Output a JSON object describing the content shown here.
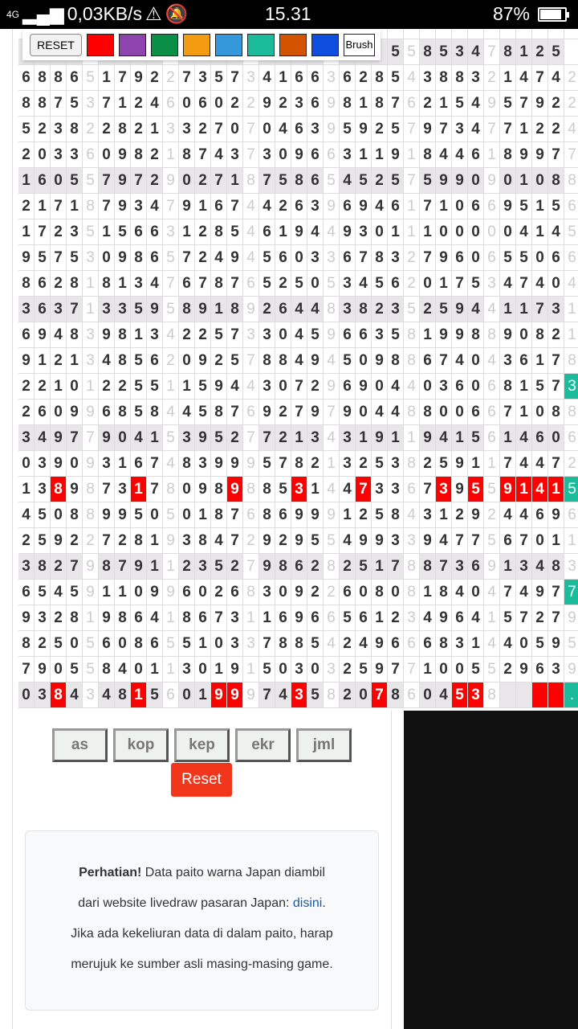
{
  "status": {
    "network": "4G",
    "speed": "0,03KB/s",
    "time": "15.31",
    "battery": "87%",
    "battery_level": 0.87
  },
  "toolbar": {
    "reset": "RESET",
    "brush": "Brush",
    "colors": [
      "#ff0000",
      "#8e44ad",
      "#0a8f47",
      "#f39c12",
      "#3498db",
      "#1abc9c",
      "#d35400",
      "#0e4fe0"
    ]
  },
  "grid": {
    "rows": [
      "                                   ",
      "                       55853478125 7",
      "68865179227357341663628543883214742",
      "88753712460602292369818762154957922",
      "52382282133270704639592579734771224",
      "20336098218743730966311918446189977",
      "16055797290271875865452575990901088",
      "21718793479167442639694617106695156",
      "17235156631285461944930111000004145",
      "95753098657249456033678327960655066",
      "86281813476787652505345620175347404",
      "36371335958918926448382352594411731",
      "69483981342257330459663581998890821",
      "91213485620925788494509886740436178",
      "22101225511594430729690440360681573",
      "26099685844587692797904488006671088",
      "34977904153952772134319119415614606",
      "03909316748399957821325382591174472",
      "13898731780989885314473367395591415",
      "45088995050187686999125843129244696",
      "25922728193847292955499339477567011",
      "38279879112352798628251788736913483",
      "65459110996026830922608081840474977",
      "93281986418673116966561234964157279",
      "82505608655103378854249666831440595",
      "79055840113019150303259771005529639",
      "038434815601999743582078604538    ."
    ],
    "highlight_rows": [
      1,
      6,
      11,
      16,
      21,
      26
    ],
    "marks": [
      {
        "row": 14,
        "col": 34,
        "color": "#1abc9c"
      },
      {
        "row": 18,
        "col": 2,
        "color": "#ff0000"
      },
      {
        "row": 18,
        "col": 7,
        "color": "#ff0000"
      },
      {
        "row": 18,
        "col": 13,
        "color": "#ff0000"
      },
      {
        "row": 18,
        "col": 17,
        "color": "#ff0000"
      },
      {
        "row": 18,
        "col": 21,
        "color": "#ff0000"
      },
      {
        "row": 18,
        "col": 26,
        "color": "#ff0000"
      },
      {
        "row": 18,
        "col": 28,
        "color": "#ff0000"
      },
      {
        "row": 18,
        "col": 30,
        "color": "#ff0000"
      },
      {
        "row": 18,
        "col": 31,
        "color": "#ff0000"
      },
      {
        "row": 18,
        "col": 32,
        "color": "#ff0000"
      },
      {
        "row": 18,
        "col": 33,
        "color": "#ff0000"
      },
      {
        "row": 18,
        "col": 34,
        "color": "#1abc9c"
      },
      {
        "row": 22,
        "col": 34,
        "color": "#1abc9c"
      },
      {
        "row": 26,
        "col": 2,
        "color": "#ff0000"
      },
      {
        "row": 26,
        "col": 7,
        "color": "#ff0000"
      },
      {
        "row": 26,
        "col": 12,
        "color": "#ff0000"
      },
      {
        "row": 26,
        "col": 13,
        "color": "#ff0000"
      },
      {
        "row": 26,
        "col": 17,
        "color": "#ff0000"
      },
      {
        "row": 26,
        "col": 22,
        "color": "#ff0000"
      },
      {
        "row": 26,
        "col": 27,
        "color": "#ff0000"
      },
      {
        "row": 26,
        "col": 28,
        "color": "#ff0000"
      },
      {
        "row": 26,
        "col": 32,
        "color": "#ff0000"
      },
      {
        "row": 26,
        "col": 33,
        "color": "#ff0000"
      },
      {
        "row": 26,
        "col": 34,
        "color": "#1abc9c"
      }
    ]
  },
  "buttons": [
    "as",
    "kop",
    "kep",
    "ekr",
    "jml"
  ],
  "reset_button": "Reset",
  "notice": {
    "bold": "Perhatian!",
    "line1": " Data paito warna Japan diambil",
    "line2": "dari website livedraw pasaran Japan: ",
    "link": "disini",
    "line2_end": ".",
    "line3": "Jika ada kekeliuran data di dalam paito, harap",
    "line4": "merujuk ke sumber asli masing-masing game."
  }
}
